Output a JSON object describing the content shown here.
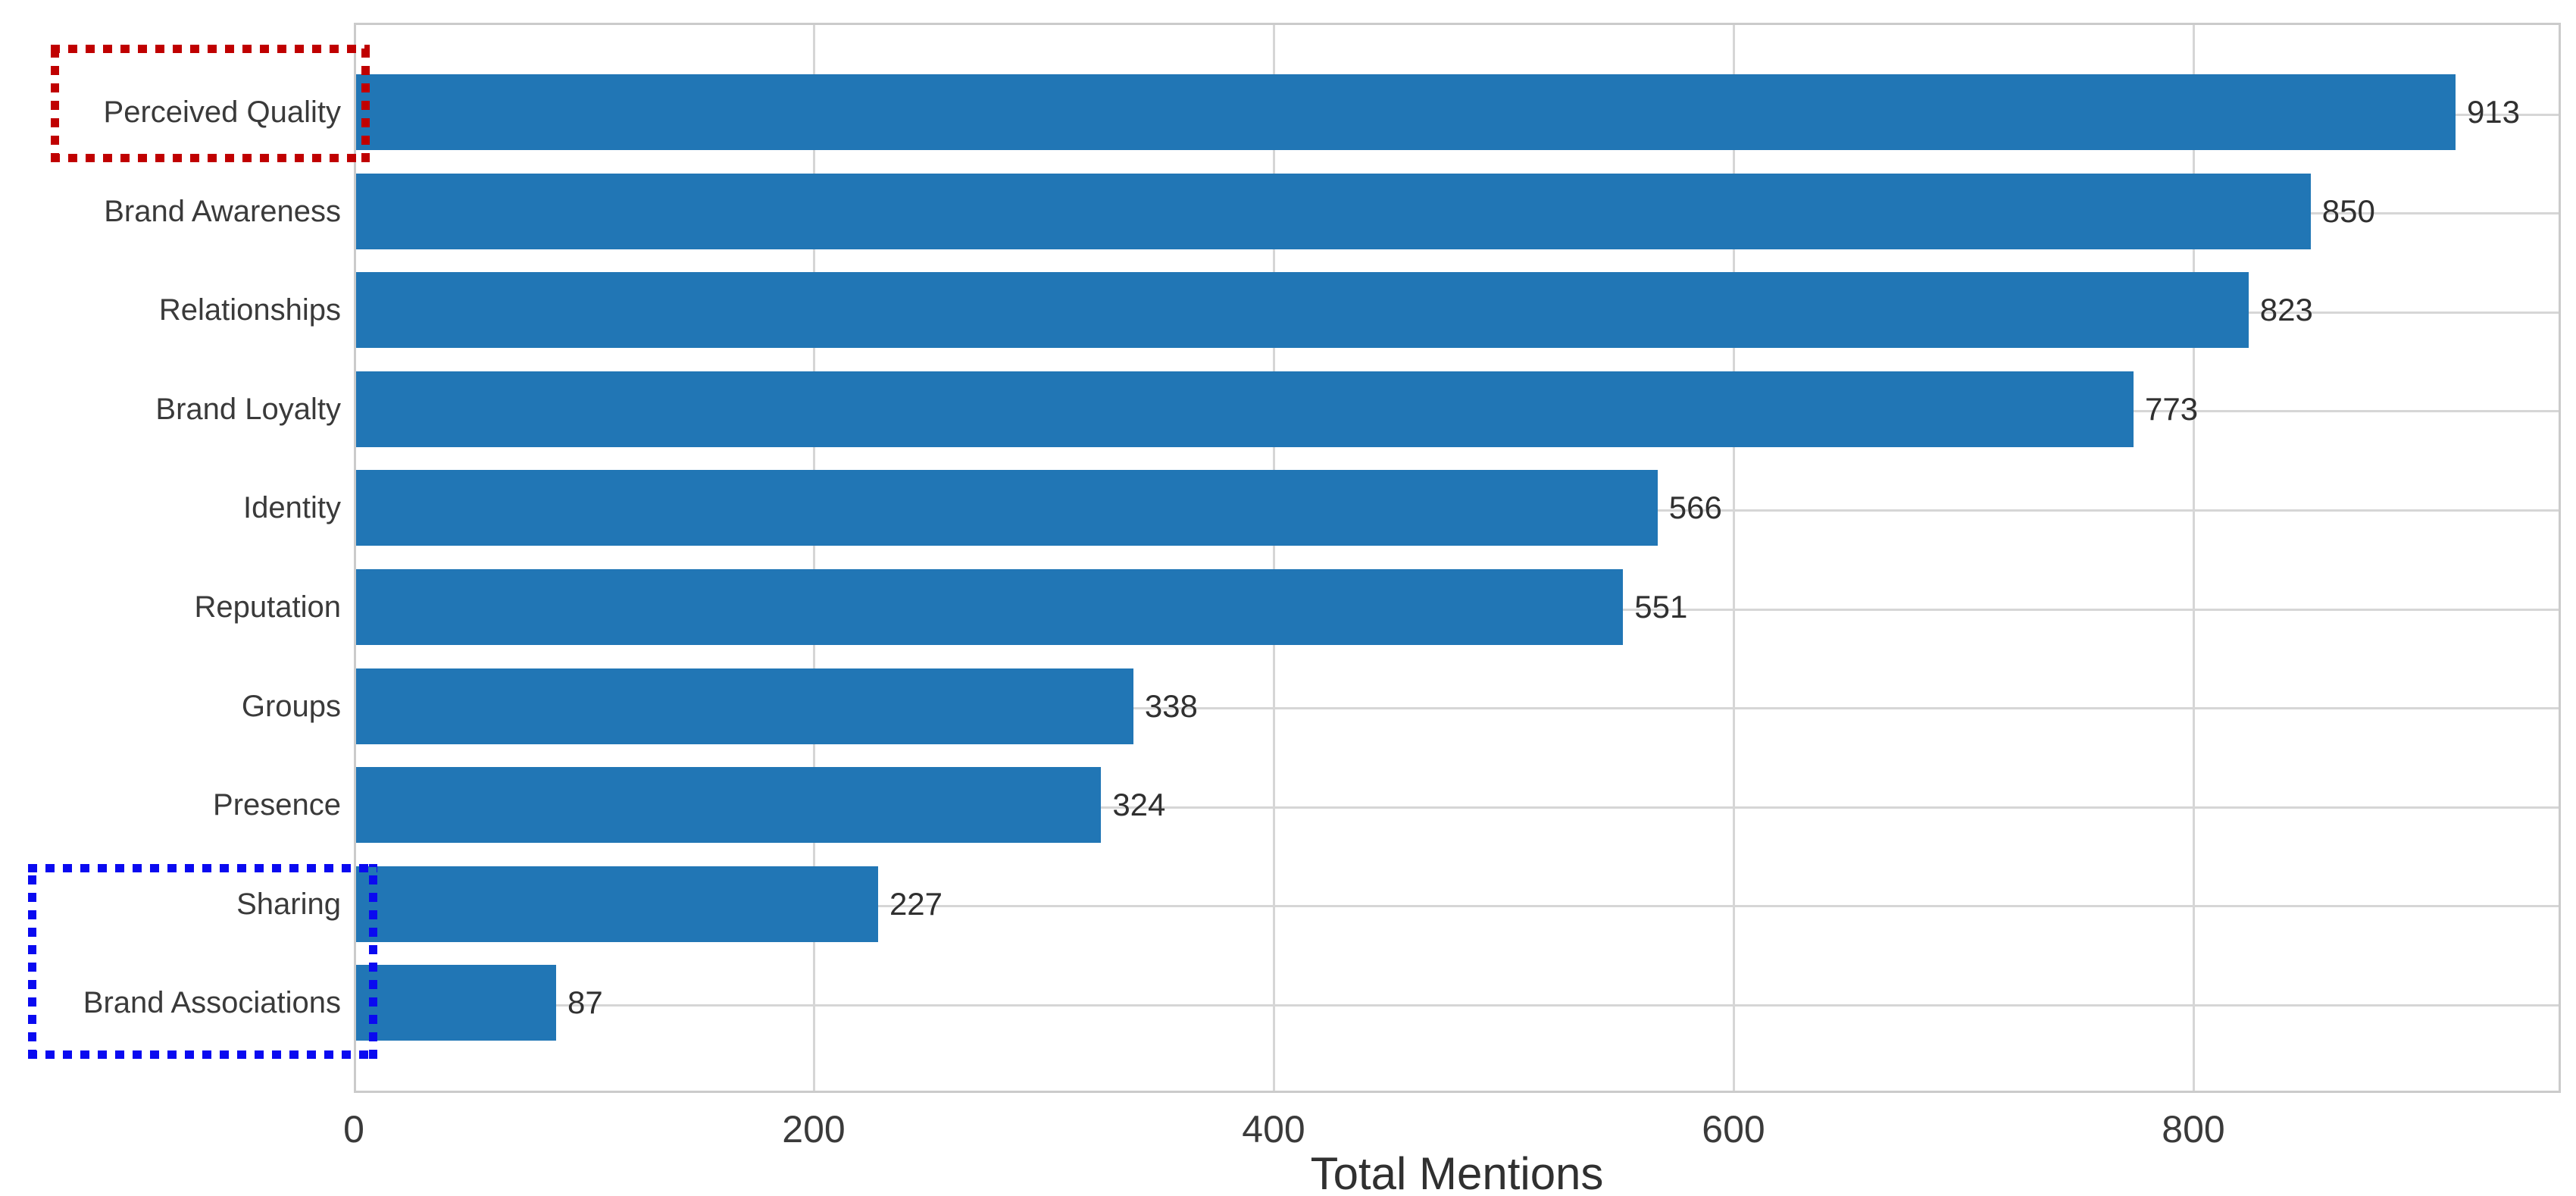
{
  "chart_data": {
    "type": "bar",
    "orientation": "horizontal",
    "title": "",
    "xlabel": "Total Mentions",
    "ylabel": "",
    "categories": [
      "Perceived Quality",
      "Brand Awareness",
      "Relationships",
      "Brand Loyalty",
      "Identity",
      "Reputation",
      "Groups",
      "Presence",
      "Sharing",
      "Brand Associations"
    ],
    "values": [
      913,
      850,
      823,
      773,
      566,
      551,
      338,
      324,
      227,
      87
    ],
    "value_labels": [
      "913",
      "850",
      "823",
      "773",
      "566",
      "551",
      "338",
      "324",
      "227",
      "87"
    ],
    "xlim": [
      0,
      960
    ],
    "x_ticks": [
      0,
      200,
      400,
      600,
      800
    ],
    "grid": "both",
    "legend_position": "none",
    "bar_color": "#2176b5",
    "gridline_color": "#d6d6d6",
    "spine_color": "#cbcbcb",
    "text_color": "#3a3a3a"
  },
  "annotations": {
    "red_box": {
      "shape": "dotted-rectangle",
      "color": "#c00000",
      "encloses_label": "Perceived Quality"
    },
    "blue_box": {
      "shape": "dotted-rectangle",
      "color": "#0a0af0",
      "encloses_label": "Sharing / Brand Associations"
    }
  }
}
